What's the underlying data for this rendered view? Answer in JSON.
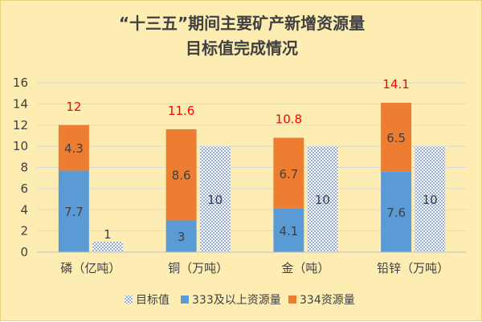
{
  "chart_data": {
    "type": "bar",
    "title_lines": [
      "“十三五”期间主要矿产新增资源量",
      "目标值完成情况"
    ],
    "categories": [
      "磷（亿吨）",
      "铜（万吨）",
      "金（吨）",
      "铅锌（万吨）"
    ],
    "ylim": [
      0,
      16
    ],
    "yticks": [
      0,
      2,
      4,
      6,
      8,
      10,
      12,
      14,
      16
    ],
    "grid": true,
    "legend_position": "bottom",
    "stacked_series": [
      {
        "name": "333及以上资源量",
        "color": "#5b9bd5",
        "values": [
          7.7,
          3,
          4.1,
          7.6
        ],
        "labels": [
          "7.7",
          "3",
          "4.1",
          "7.6"
        ]
      },
      {
        "name": "334资源量",
        "color": "#ed7d31",
        "values": [
          4.3,
          8.6,
          6.7,
          6.5
        ],
        "labels": [
          "4.3",
          "8.6",
          "6.7",
          "6.5"
        ]
      }
    ],
    "totals": [
      "12",
      "11.6",
      "10.8",
      "14.1"
    ],
    "target_series": {
      "name": "目标值",
      "color": "#4472c4",
      "values": [
        1,
        10,
        10,
        10
      ],
      "labels": [
        "1",
        "10",
        "10",
        "10"
      ]
    },
    "legend_order": [
      "目标值",
      "333及以上资源量",
      "334资源量"
    ],
    "colors": {
      "background": "#fdedb2",
      "grid": "#d9d9d9",
      "total_label": "#ff0000"
    }
  }
}
